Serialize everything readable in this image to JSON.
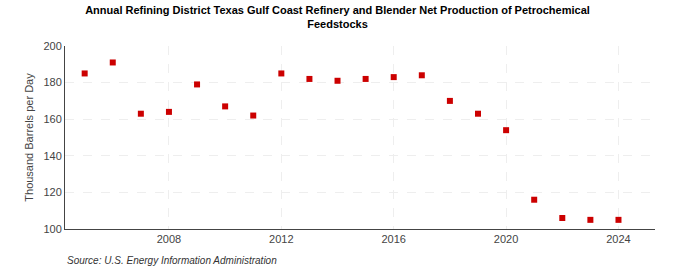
{
  "chart_data": {
    "type": "scatter",
    "title": "Annual Refining District Texas Gulf Coast Refinery and Blender Net Production of Petrochemical\nFeedstocks",
    "ylabel": "Thousand Barrels per Day",
    "annotations": [
      "Source: U.S. Energy Information Administration"
    ],
    "x": [
      2005,
      2006,
      2007,
      2008,
      2009,
      2010,
      2011,
      2012,
      2013,
      2014,
      2015,
      2016,
      2017,
      2018,
      2019,
      2020,
      2021,
      2022,
      2023,
      2024
    ],
    "values": [
      185,
      191,
      163,
      164,
      179,
      167,
      162,
      185,
      182,
      181,
      182,
      183,
      184,
      170,
      163,
      154,
      116,
      106,
      105,
      105
    ],
    "color": "#cc0000",
    "marker": "square",
    "xlim": [
      2004.3,
      2025.3
    ],
    "xticks": [
      2008,
      2012,
      2016,
      2020,
      2024
    ],
    "ylim": [
      100,
      200
    ],
    "yticks": [
      100,
      120,
      140,
      160,
      180,
      200
    ],
    "grid": true
  }
}
